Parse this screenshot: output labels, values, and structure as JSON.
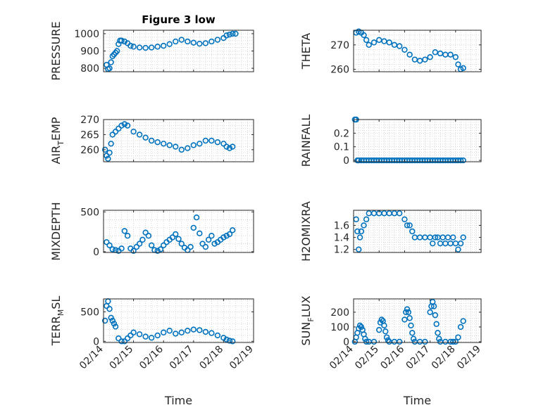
{
  "figure": {
    "title": "Figure 3 low",
    "x_label": "Time",
    "x_ticks": [
      "02/14",
      "02/15",
      "02/16",
      "02/17",
      "02/18",
      "02/19"
    ],
    "marker_color": "#0072BD"
  },
  "chart_data": [
    {
      "type": "scatter",
      "id": "pressure",
      "title": "Figure 3 low",
      "ylabel": "PRESSURE",
      "ylim": [
        780,
        1020
      ],
      "yticks": [
        800,
        900,
        1000
      ],
      "yticklabels": [
        "800",
        "900",
        "1000"
      ],
      "xlabel": "",
      "xticklabels": [
        "02/14",
        "02/15",
        "02/16",
        "02/17",
        "02/18",
        "02/19"
      ],
      "show_xticklabels": false,
      "x": [
        0.1,
        0.15,
        0.2,
        0.25,
        0.3,
        0.35,
        0.4,
        0.45,
        0.5,
        0.55,
        0.6,
        0.7,
        0.8,
        0.9,
        1.0,
        1.2,
        1.4,
        1.6,
        1.8,
        2.0,
        2.2,
        2.4,
        2.6,
        2.8,
        3.0,
        3.2,
        3.4,
        3.6,
        3.8,
        4.0,
        4.1,
        4.2,
        4.3,
        4.4
      ],
      "y": [
        820,
        795,
        800,
        835,
        870,
        880,
        890,
        900,
        940,
        960,
        960,
        955,
        945,
        930,
        925,
        920,
        918,
        920,
        925,
        930,
        940,
        955,
        965,
        955,
        948,
        942,
        945,
        955,
        965,
        975,
        990,
        995,
        1000,
        1000
      ]
    },
    {
      "type": "scatter",
      "id": "theta",
      "title": "",
      "ylabel": "THETA",
      "ylim": [
        259,
        276
      ],
      "yticks": [
        260,
        270
      ],
      "yticklabels": [
        "260",
        "270"
      ],
      "xlabel": "",
      "xticklabels": [
        "02/14",
        "02/15",
        "02/16",
        "02/17",
        "02/18",
        "02/19"
      ],
      "show_xticklabels": false,
      "x": [
        0.1,
        0.2,
        0.3,
        0.4,
        0.5,
        0.6,
        0.8,
        1.0,
        1.2,
        1.4,
        1.6,
        1.8,
        2.0,
        2.2,
        2.4,
        2.6,
        2.8,
        3.0,
        3.2,
        3.4,
        3.6,
        3.8,
        4.0,
        4.1,
        4.2,
        4.3
      ],
      "y": [
        275,
        275.5,
        275,
        274,
        272,
        270,
        271,
        272,
        271.5,
        271,
        270,
        269.5,
        268,
        266,
        264,
        263.5,
        264,
        265,
        267,
        266.5,
        266,
        266,
        265,
        262,
        260,
        260.5
      ]
    },
    {
      "type": "scatter",
      "id": "air_temp",
      "title": "",
      "ylabel": "AIR_TEMP",
      "ylabel_main": "AIR",
      "ylabel_sub": "T",
      "ylabel_rest": "EMP",
      "ylim": [
        256,
        270
      ],
      "yticks": [
        260,
        265,
        270
      ],
      "yticklabels": [
        "260",
        "265",
        "270"
      ],
      "xlabel": "",
      "xticklabels": [
        "02/14",
        "02/15",
        "02/16",
        "02/17",
        "02/18",
        "02/19"
      ],
      "show_xticklabels": false,
      "x": [
        0.05,
        0.1,
        0.15,
        0.2,
        0.25,
        0.3,
        0.4,
        0.5,
        0.6,
        0.7,
        0.8,
        1.0,
        1.2,
        1.4,
        1.6,
        1.8,
        2.0,
        2.2,
        2.4,
        2.6,
        2.8,
        3.0,
        3.2,
        3.4,
        3.6,
        3.8,
        4.0,
        4.1,
        4.2,
        4.3
      ],
      "y": [
        260,
        258,
        257,
        259,
        262,
        265,
        266,
        267,
        268,
        268.5,
        268,
        266,
        265,
        264,
        263,
        262.5,
        262,
        261.5,
        261,
        260,
        260.5,
        261.5,
        262,
        263,
        263,
        262.5,
        262,
        261,
        260.5,
        261
      ]
    },
    {
      "type": "scatter",
      "id": "rainfall",
      "title": "",
      "ylabel": "RAINFALL",
      "ylim": [
        -0.01,
        0.3
      ],
      "yticks": [
        0,
        0.1,
        0.2
      ],
      "yticklabels": [
        "0",
        "0.1",
        "0.2"
      ],
      "xlabel": "",
      "xticklabels": [
        "02/14",
        "02/15",
        "02/16",
        "02/17",
        "02/18",
        "02/19"
      ],
      "show_xticklabels": false,
      "x": [
        0.05,
        0.1,
        0.15,
        0.2,
        0.3,
        0.4,
        0.5,
        0.6,
        0.7,
        0.8,
        0.9,
        1.0,
        1.1,
        1.2,
        1.3,
        1.4,
        1.5,
        1.6,
        1.7,
        1.8,
        1.9,
        2.0,
        2.1,
        2.2,
        2.3,
        2.4,
        2.5,
        2.6,
        2.7,
        2.8,
        2.9,
        3.0,
        3.1,
        3.2,
        3.3,
        3.4,
        3.5,
        3.6,
        3.7,
        3.8,
        3.9,
        4.0,
        4.1,
        4.2,
        4.3
      ],
      "y": [
        0.3,
        0.3,
        0,
        0,
        0,
        0,
        0,
        0,
        0,
        0,
        0,
        0,
        0,
        0,
        0,
        0,
        0,
        0,
        0,
        0,
        0,
        0,
        0,
        0,
        0,
        0,
        0,
        0,
        0,
        0,
        0,
        0,
        0,
        0,
        0,
        0,
        0,
        0,
        0,
        0,
        0,
        0,
        0,
        0,
        0
      ]
    },
    {
      "type": "scatter",
      "id": "mixdepth",
      "title": "",
      "ylabel": "MIXDEPTH",
      "ylim": [
        -10,
        520
      ],
      "yticks": [
        0,
        500
      ],
      "yticklabels": [
        "0",
        "500"
      ],
      "xlabel": "",
      "xticklabels": [
        "02/14",
        "02/15",
        "02/16",
        "02/17",
        "02/18",
        "02/19"
      ],
      "show_xticklabels": false,
      "x": [
        0.1,
        0.2,
        0.3,
        0.4,
        0.5,
        0.6,
        0.7,
        0.8,
        0.9,
        1.0,
        1.1,
        1.2,
        1.3,
        1.4,
        1.5,
        1.6,
        1.7,
        1.8,
        1.9,
        2.0,
        2.1,
        2.2,
        2.3,
        2.4,
        2.5,
        2.6,
        2.7,
        2.8,
        2.9,
        3.0,
        3.1,
        3.2,
        3.3,
        3.4,
        3.5,
        3.6,
        3.7,
        3.8,
        3.9,
        4.0,
        4.1,
        4.2,
        4.3
      ],
      "y": [
        120,
        80,
        30,
        20,
        10,
        40,
        260,
        200,
        40,
        10,
        60,
        100,
        150,
        240,
        200,
        80,
        20,
        10,
        30,
        80,
        120,
        150,
        180,
        220,
        160,
        100,
        50,
        20,
        60,
        300,
        430,
        230,
        100,
        60,
        150,
        200,
        100,
        120,
        150,
        180,
        200,
        220,
        270
      ]
    },
    {
      "type": "scatter",
      "id": "h2omixra",
      "title": "",
      "ylabel": "H2OMIXRA",
      "ylim": [
        1.15,
        1.85
      ],
      "yticks": [
        1.2,
        1.4,
        1.6
      ],
      "yticklabels": [
        "1.2",
        "1.4",
        "1.6"
      ],
      "xlabel": "",
      "xticklabels": [
        "02/14",
        "02/15",
        "02/16",
        "02/17",
        "02/18",
        "02/19"
      ],
      "show_xticklabels": false,
      "x": [
        0.1,
        0.15,
        0.2,
        0.25,
        0.3,
        0.4,
        0.5,
        0.6,
        0.8,
        1.0,
        1.2,
        1.4,
        1.6,
        1.8,
        2.0,
        2.1,
        2.2,
        2.3,
        2.4,
        2.6,
        2.8,
        3.0,
        3.1,
        3.2,
        3.3,
        3.4,
        3.5,
        3.6,
        3.7,
        3.8,
        3.9,
        4.0,
        4.1,
        4.2,
        4.3
      ],
      "y": [
        1.7,
        1.5,
        1.2,
        1.4,
        1.5,
        1.6,
        1.7,
        1.8,
        1.8,
        1.8,
        1.8,
        1.8,
        1.8,
        1.8,
        1.7,
        1.6,
        1.6,
        1.5,
        1.4,
        1.4,
        1.4,
        1.4,
        1.3,
        1.4,
        1.4,
        1.3,
        1.4,
        1.3,
        1.4,
        1.3,
        1.4,
        1.3,
        1.2,
        1.3,
        1.4
      ]
    },
    {
      "type": "scatter",
      "id": "terr_msl",
      "title": "",
      "ylabel": "TERR_MSL",
      "ylabel_main": "TERR",
      "ylabel_sub": "M",
      "ylabel_rest": "SL",
      "ylim": [
        -20,
        720
      ],
      "yticks": [
        0,
        500
      ],
      "yticklabels": [
        "0",
        "500"
      ],
      "xlabel": "Time",
      "xticklabels": [
        "02/14",
        "02/15",
        "02/16",
        "02/17",
        "02/18",
        "02/19"
      ],
      "show_xticklabels": true,
      "x": [
        0.05,
        0.1,
        0.15,
        0.2,
        0.25,
        0.3,
        0.35,
        0.4,
        0.5,
        0.6,
        0.7,
        0.8,
        0.9,
        1.0,
        1.2,
        1.4,
        1.6,
        1.8,
        2.0,
        2.2,
        2.4,
        2.6,
        2.8,
        3.0,
        3.2,
        3.4,
        3.6,
        3.8,
        4.0,
        4.1,
        4.2,
        4.3
      ],
      "y": [
        350,
        600,
        680,
        550,
        400,
        350,
        300,
        250,
        50,
        0,
        0,
        50,
        100,
        150,
        120,
        80,
        60,
        100,
        150,
        180,
        130,
        150,
        180,
        200,
        190,
        160,
        140,
        100,
        60,
        30,
        10,
        0
      ]
    },
    {
      "type": "scatter",
      "id": "sun_flux",
      "title": "",
      "ylabel": "SUN_FLUX",
      "ylabel_main": "SUN",
      "ylabel_sub": "F",
      "ylabel_rest": "LUX",
      "ylim": [
        -5,
        290
      ],
      "yticks": [
        0,
        100,
        200
      ],
      "yticklabels": [
        "0",
        "100",
        "200"
      ],
      "xlabel": "Time",
      "xticklabels": [
        "02/14",
        "02/15",
        "02/16",
        "02/17",
        "02/18",
        "02/19"
      ],
      "show_xticklabels": true,
      "x": [
        0.05,
        0.1,
        0.15,
        0.2,
        0.25,
        0.3,
        0.35,
        0.4,
        0.45,
        0.5,
        0.6,
        0.8,
        1.0,
        1.05,
        1.1,
        1.15,
        1.2,
        1.25,
        1.3,
        1.35,
        1.4,
        1.6,
        1.8,
        2.0,
        2.05,
        2.1,
        2.15,
        2.2,
        2.25,
        2.3,
        2.35,
        2.4,
        2.6,
        2.8,
        3.0,
        3.05,
        3.1,
        3.15,
        3.2,
        3.25,
        3.3,
        3.35,
        3.4,
        3.6,
        3.8,
        3.9,
        4.0,
        4.1,
        4.2,
        4.3
      ],
      "y": [
        0,
        30,
        60,
        90,
        110,
        100,
        80,
        50,
        20,
        0,
        0,
        0,
        80,
        130,
        150,
        140,
        110,
        70,
        30,
        10,
        0,
        0,
        0,
        150,
        200,
        220,
        200,
        160,
        110,
        60,
        20,
        0,
        0,
        0,
        200,
        240,
        270,
        240,
        180,
        120,
        60,
        20,
        0,
        0,
        0,
        0,
        0,
        30,
        100,
        140
      ]
    }
  ]
}
